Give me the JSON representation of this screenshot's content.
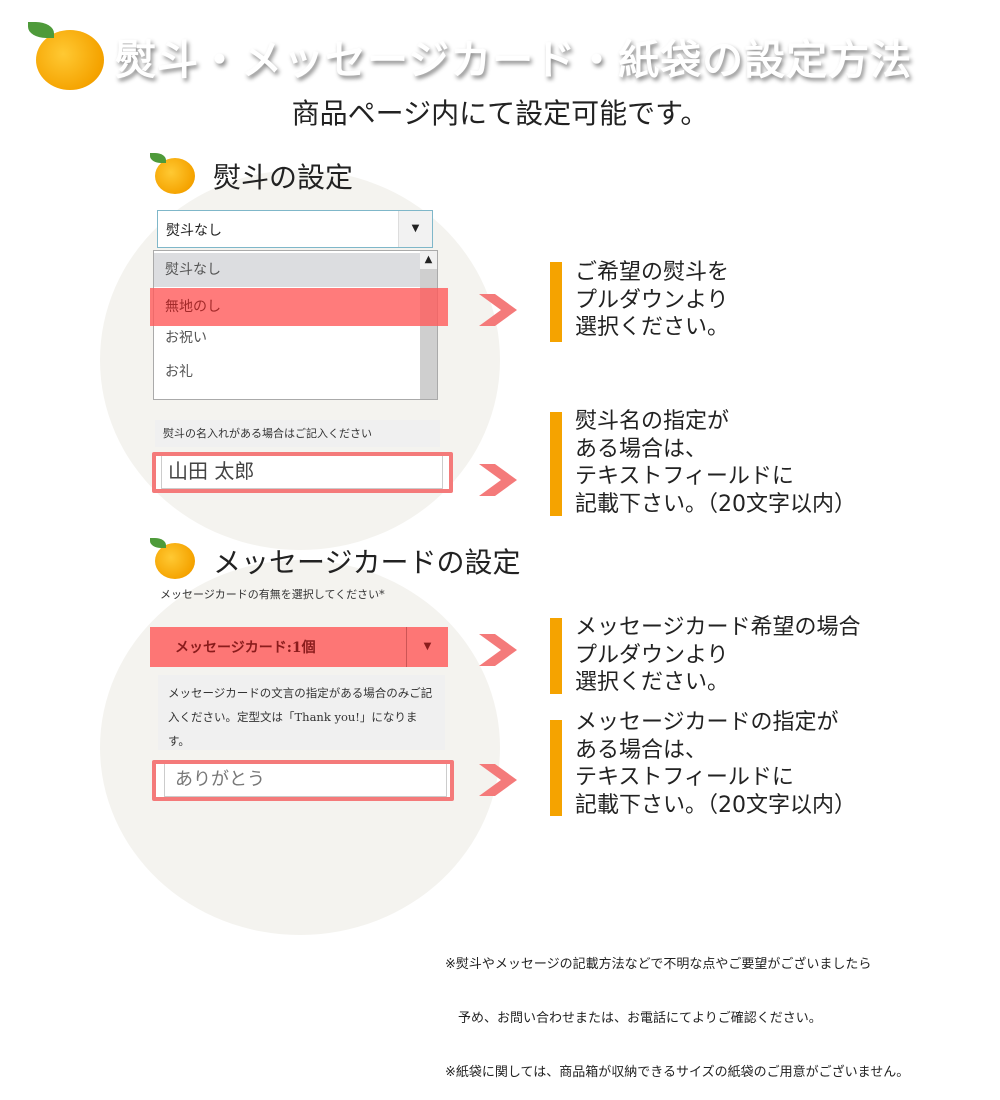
{
  "header": {
    "title": "熨斗・メッセージカード・紙袋の設定方法",
    "subtitle": "商品ページ内にて設定可能です。",
    "icon": "orange-icon"
  },
  "noshi": {
    "heading": "熨斗の設定",
    "select_value": "熨斗なし",
    "options": [
      "熨斗なし",
      "無地のし",
      "お祝い",
      "お礼"
    ],
    "highlighted_option": "無地のし",
    "name_label": "熨斗の名入れがある場合はご記入ください",
    "name_value": "山田 太郎",
    "desc1": [
      "ご希望の熨斗を",
      "プルダウンより",
      "選択ください。"
    ],
    "desc2": [
      "熨斗名の指定が",
      "ある場合は、",
      "テキストフィールドに",
      "記載下さい。（20文字以内）"
    ]
  },
  "card": {
    "heading": "メッセージカードの設定",
    "select_label": "メッセージカードの有無を選択してください",
    "required_mark": "*",
    "select_value": "メッセージカード:1個",
    "text_label": "メッセージカードの文言の指定がある場合のみご記入ください。定型文は「Thank you!」になります。",
    "text_value": "ありがとう",
    "desc1": [
      "メッセージカード希望の場合",
      "プルダウンより",
      "選択ください。"
    ],
    "desc2": [
      "メッセージカードの指定が",
      "ある場合は、",
      "テキストフィールドに",
      "記載下さい。（20文字以内）"
    ]
  },
  "footnotes": [
    "※熨斗やメッセージの記載方法などで不明な点やご要望がございましたら",
    "　予め、お問い合わせまたは、お電話にてよりご確認ください。",
    "※紙袋に関しては、商品箱が収納できるサイズの紙袋のご用意がございません。"
  ],
  "colors": {
    "accent": "#f5a300",
    "highlight": "#ff5a5a",
    "arrow": "#f47a7a",
    "circle": "#f4f3ef"
  }
}
